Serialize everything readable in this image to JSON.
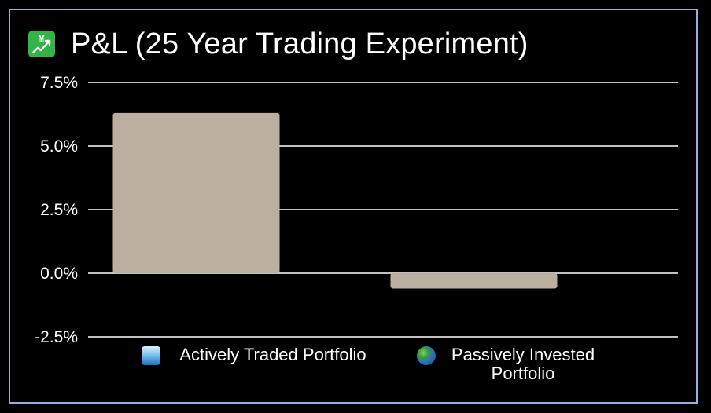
{
  "title": "P&L (25 Year Trading Experiment)",
  "title_icon": "chart-with-upwards-trend-yen-icon",
  "colors": {
    "background": "#000000",
    "bar": "#bbb09f",
    "grid": "#ffffff",
    "text": "#ffffff",
    "border": "#8fb3dc",
    "icon_bg": "#32b447"
  },
  "chart_data": {
    "type": "bar",
    "title": "P&L (25 Year Trading Experiment)",
    "xlabel": "",
    "ylabel": "",
    "ylim": [
      -2.5,
      7.5
    ],
    "y_ticks": [
      7.5,
      5.0,
      2.5,
      0.0,
      -2.5
    ],
    "y_tick_labels": [
      "7.5%",
      "5.0%",
      "2.5%",
      "0.0%",
      "-2.5%"
    ],
    "grid": true,
    "categories": [
      "Actively Traded Portfolio",
      "Passively Invested Portfolio"
    ],
    "values": [
      6.3,
      -0.6
    ]
  },
  "legend": [
    {
      "icon": "water-wave-icon",
      "label_lines": [
        "Actively Traded Portfolio"
      ]
    },
    {
      "icon": "globe-icon",
      "label_lines": [
        "Passively Invested",
        "Portfolio"
      ]
    }
  ]
}
